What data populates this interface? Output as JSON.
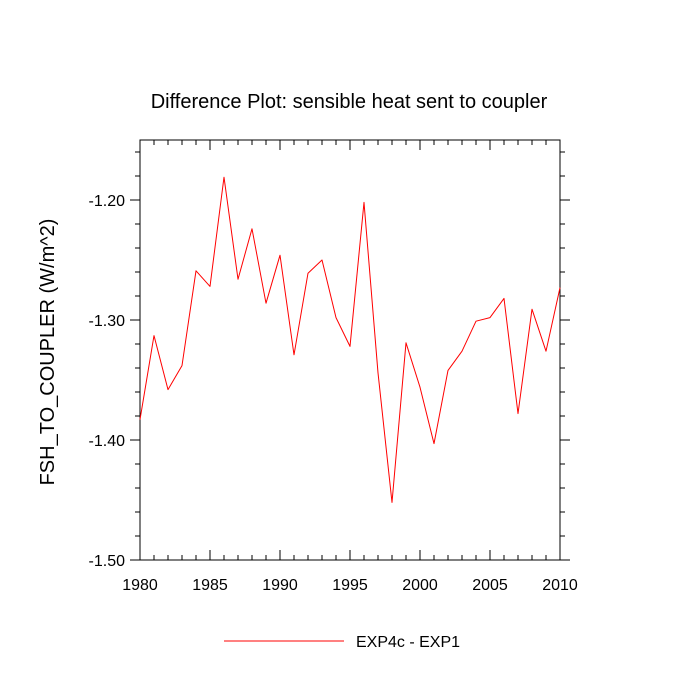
{
  "chart_data": {
    "type": "line",
    "title": "Difference Plot: sensible heat sent to coupler",
    "xlabel": "",
    "ylabel": "FSH_TO_COUPLER  (W/m^2)",
    "xlim": [
      1980,
      2010
    ],
    "ylim": [
      -1.5,
      -1.15
    ],
    "x_ticks": [
      1980,
      1985,
      1990,
      1995,
      2000,
      2005,
      2010
    ],
    "x_tick_labels": [
      "1980",
      "1985",
      "1990",
      "1995",
      "2000",
      "2005",
      "2010"
    ],
    "y_ticks": [
      -1.5,
      -1.4,
      -1.3,
      -1.2
    ],
    "y_tick_labels": [
      "-1.50",
      "-1.40",
      "-1.30",
      "-1.20"
    ],
    "grid": false,
    "legend_position": "bottom-center",
    "series": [
      {
        "name": "EXP4c - EXP1",
        "color": "#ff0000",
        "x": [
          1980,
          1981,
          1982,
          1983,
          1984,
          1985,
          1986,
          1987,
          1988,
          1989,
          1990,
          1991,
          1992,
          1993,
          1994,
          1995,
          1996,
          1997,
          1998,
          1999,
          2000,
          2001,
          2002,
          2003,
          2004,
          2005,
          2006,
          2007,
          2008,
          2009,
          2010
        ],
        "values": [
          -1.383,
          -1.313,
          -1.358,
          -1.338,
          -1.259,
          -1.272,
          -1.181,
          -1.266,
          -1.224,
          -1.286,
          -1.246,
          -1.329,
          -1.261,
          -1.25,
          -1.298,
          -1.322,
          -1.202,
          -1.344,
          -1.452,
          -1.319,
          -1.356,
          -1.403,
          -1.342,
          -1.326,
          -1.301,
          -1.298,
          -1.282,
          -1.378,
          -1.291,
          -1.326,
          -1.273
        ]
      }
    ]
  }
}
